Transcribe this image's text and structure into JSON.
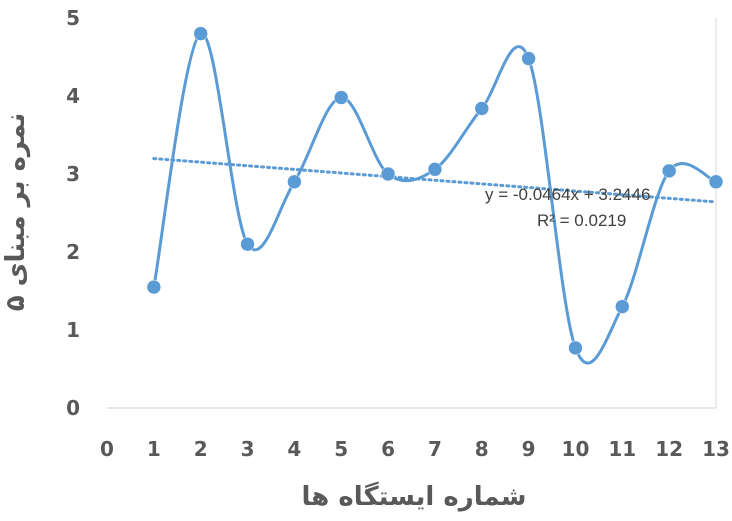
{
  "chart_data": {
    "type": "scatter",
    "xlabel": "شماره ایستگاه ها",
    "ylabel": "نمره بر مبنای ۵",
    "xlim": [
      0,
      13
    ],
    "ylim": [
      0,
      5
    ],
    "x_ticks": [
      "0",
      "1",
      "2",
      "3",
      "4",
      "5",
      "6",
      "7",
      "8",
      "9",
      "10",
      "11",
      "12",
      "13"
    ],
    "y_ticks": [
      "0",
      "1",
      "2",
      "3",
      "4",
      "5"
    ],
    "grid": "vertical-right-border",
    "series": [
      {
        "x": [
          1,
          2,
          3,
          4,
          5,
          6,
          7,
          8,
          9,
          10,
          11,
          12,
          13
        ],
        "values": [
          1.55,
          4.8,
          2.1,
          2.9,
          3.98,
          3.0,
          3.06,
          3.84,
          4.48,
          0.77,
          1.3,
          3.04,
          2.9
        ],
        "color": "#5b9bd5",
        "line": "smooth",
        "marker": "circle"
      }
    ],
    "trendline": {
      "type": "linear",
      "slope": -0.0464,
      "intercept": 3.2446,
      "color": "#5b9bd5",
      "style": "dotted",
      "equation": "y = -0.0464x + 3.2446",
      "r2": "R² = 0.0219"
    }
  }
}
